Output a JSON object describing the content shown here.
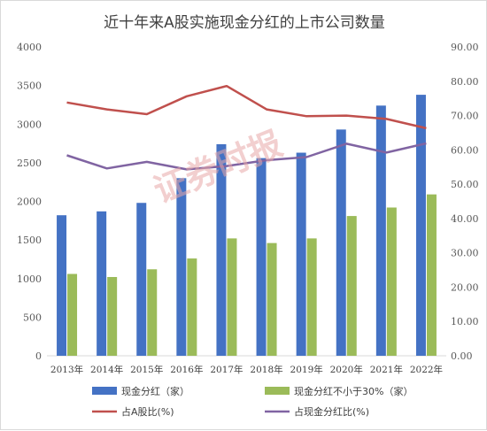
{
  "chart_data": {
    "type": "bar",
    "title": "近十年来A股实施现金分红的上市公司数量",
    "categories": [
      "2013年",
      "2014年",
      "2015年",
      "2016年",
      "2017年",
      "2018年",
      "2019年",
      "2020年",
      "2021年",
      "2022年"
    ],
    "series": [
      {
        "name": "现金分红（家）",
        "kind": "bar",
        "axis": "left",
        "color": "#4472c4",
        "values": [
          1820,
          1870,
          1980,
          2300,
          2740,
          2560,
          2630,
          2930,
          3240,
          3380
        ]
      },
      {
        "name": "现金分红不小于30%（家）",
        "kind": "bar",
        "axis": "left",
        "color": "#9bbb59",
        "values": [
          1060,
          1020,
          1120,
          1260,
          1520,
          1460,
          1520,
          1810,
          1920,
          2090
        ]
      },
      {
        "name": "占A股比(%)",
        "kind": "line",
        "axis": "right",
        "color": "#c0504d",
        "values": [
          73.8,
          71.8,
          70.4,
          75.6,
          78.6,
          71.8,
          69.8,
          70.0,
          69.0,
          66.3
        ]
      },
      {
        "name": "占现金分红比(%)",
        "kind": "line",
        "axis": "right",
        "color": "#8064a2",
        "values": [
          58.4,
          54.6,
          56.5,
          54.3,
          55.3,
          57.0,
          57.9,
          61.8,
          59.2,
          61.9
        ]
      }
    ],
    "y_left": {
      "min": 0,
      "max": 4000,
      "ticks": [
        "0",
        "500",
        "1000",
        "1500",
        "2000",
        "2500",
        "3000",
        "3500",
        "4000"
      ]
    },
    "y_right": {
      "min": 0,
      "max": 90,
      "ticks": [
        "0.00",
        "10.00",
        "20.00",
        "30.00",
        "40.00",
        "50.00",
        "60.00",
        "70.00",
        "80.00",
        "90.00"
      ]
    },
    "grid": false,
    "legend_position": "bottom"
  },
  "watermark": "证券时报"
}
